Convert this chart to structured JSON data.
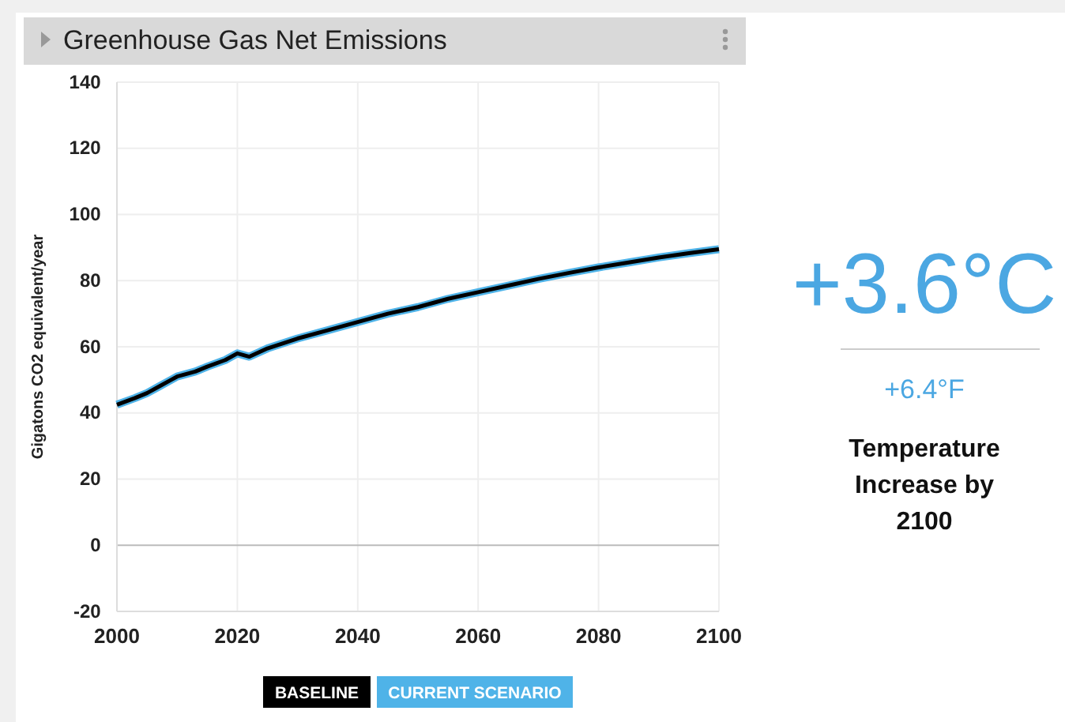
{
  "chart_data": [
    {
      "type": "line",
      "title": "Greenhouse Gas Net Emissions",
      "ylabel": "Gigatons CO2 equivalent/year",
      "xlim": [
        2000,
        2100
      ],
      "xticks": [
        2000,
        2020,
        2040,
        2060,
        2080,
        2100
      ],
      "ylim": [
        -20,
        140
      ],
      "yticks": [
        -20,
        0,
        20,
        40,
        60,
        80,
        100,
        120,
        140
      ],
      "grid": true,
      "legend": "bottom",
      "line_style": "solid",
      "marker": "none",
      "x": [
        2000,
        2003,
        2005,
        2007,
        2009,
        2010,
        2013,
        2015,
        2018,
        2020,
        2022,
        2025,
        2030,
        2035,
        2040,
        2045,
        2050,
        2055,
        2060,
        2065,
        2070,
        2075,
        2080,
        2085,
        2090,
        2095,
        2100
      ],
      "series": [
        {
          "name": "CURRENT SCENARIO",
          "color": "#4fb3e8",
          "values": [
            42.5,
            44.5,
            46,
            48,
            50,
            51,
            52.5,
            54,
            56,
            58,
            57,
            59.5,
            62.5,
            65,
            67.5,
            70,
            72,
            74.5,
            76.5,
            78.5,
            80.5,
            82.3,
            84,
            85.5,
            87,
            88.3,
            89.5
          ]
        },
        {
          "name": "BASELINE",
          "color": "#000000",
          "values": [
            42.5,
            44.5,
            46,
            48,
            50,
            51,
            52.5,
            54,
            56,
            58,
            57,
            59.5,
            62.5,
            65,
            67.5,
            70,
            72,
            74.5,
            76.5,
            78.5,
            80.5,
            82.3,
            84,
            85.5,
            87,
            88.3,
            89.5
          ]
        }
      ]
    },
    {
      "type": "other",
      "title": "Temperature Increase by 2100",
      "annotations": [
        "+3.6°C",
        "+6.4°F"
      ]
    }
  ]
}
